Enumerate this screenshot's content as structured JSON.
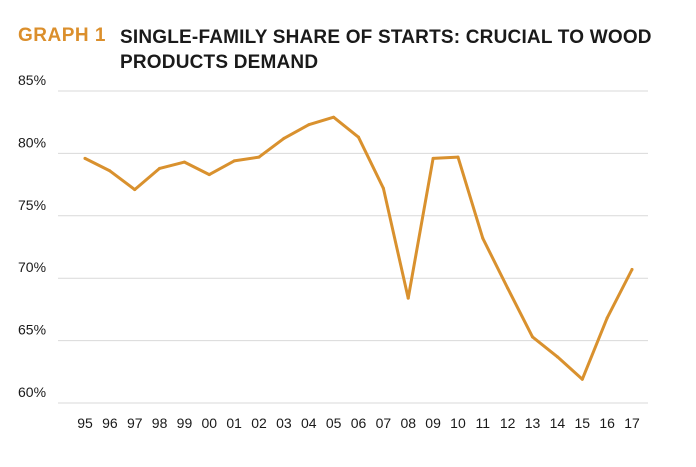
{
  "header": {
    "tag": "GRAPH 1",
    "title": "SINGLE-FAMILY SHARE OF STARTS: CRUCIAL TO WOOD PRODUCTS DEMAND"
  },
  "colors": {
    "accent": "#DB8F2C",
    "line": "#D9912E",
    "grid": "#d9d9d9",
    "text": "#1a1a1a"
  },
  "chart_data": {
    "type": "line",
    "title": "SINGLE-FAMILY SHARE OF STARTS: CRUCIAL TO WOOD PRODUCTS DEMAND",
    "xlabel": "",
    "ylabel": "",
    "categories": [
      "95",
      "96",
      "97",
      "98",
      "99",
      "00",
      "01",
      "02",
      "03",
      "04",
      "05",
      "06",
      "07",
      "08",
      "09",
      "10",
      "11",
      "12",
      "13",
      "14",
      "15",
      "16",
      "17"
    ],
    "series": [
      {
        "values": [
          79.6,
          78.6,
          77.1,
          78.8,
          79.3,
          78.3,
          79.4,
          79.7,
          81.2,
          82.3,
          82.9,
          81.3,
          77.2,
          68.4,
          79.6,
          79.7,
          73.2,
          69.2,
          65.3,
          63.7,
          61.9,
          66.8,
          70.7
        ]
      }
    ],
    "ylim": [
      60,
      85
    ],
    "yticks": [
      60,
      65,
      70,
      75,
      80,
      85
    ],
    "ytick_labels": [
      "60%",
      "65%",
      "70%",
      "75%",
      "80%",
      "85%"
    ],
    "grid": true,
    "legend": "none"
  }
}
